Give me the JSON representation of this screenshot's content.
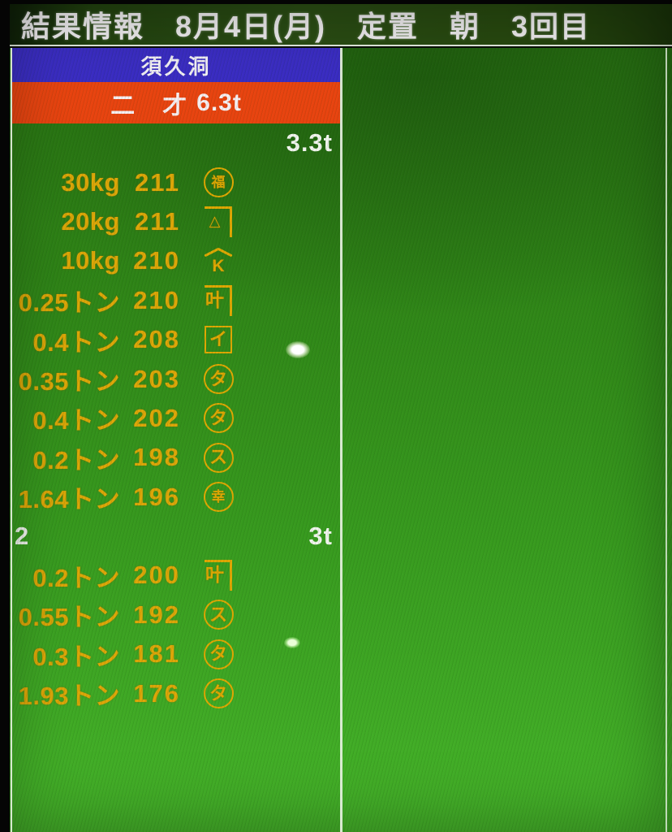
{
  "header": {
    "title": "結果情報　8月4日(月)　定置　朝　3回目"
  },
  "panel": {
    "location": "須久洞",
    "category_label": "二　才",
    "category_total": "6.3t",
    "groups": [
      {
        "number": "",
        "subtotal": "3.3t",
        "rows": [
          {
            "weight": "30kg",
            "price": "211",
            "mark": {
              "shape": "circle",
              "char": "福",
              "small": true,
              "name": "maru-fuku-mark"
            }
          },
          {
            "weight": "20kg",
            "price": "211",
            "mark": {
              "shape": "corner",
              "char": "△",
              "small": true,
              "name": "corner-triangle-mark"
            }
          },
          {
            "weight": "10kg",
            "price": "210",
            "mark": {
              "shape": "roof",
              "char": "K",
              "small": false,
              "name": "yane-k-mark"
            }
          },
          {
            "weight": "0.25トン",
            "price": "210",
            "mark": {
              "shape": "corner",
              "char": "叶",
              "small": false,
              "name": "corner-kano-mark"
            }
          },
          {
            "weight": "0.4トン",
            "price": "208",
            "mark": {
              "shape": "square",
              "char": "イ",
              "small": false,
              "name": "kaku-i-mark"
            }
          },
          {
            "weight": "0.35トン",
            "price": "203",
            "mark": {
              "shape": "circle",
              "char": "タ",
              "small": false,
              "name": "maru-ta-mark"
            }
          },
          {
            "weight": "0.4トン",
            "price": "202",
            "mark": {
              "shape": "circle",
              "char": "タ",
              "small": false,
              "name": "maru-ta-mark"
            }
          },
          {
            "weight": "0.2トン",
            "price": "198",
            "mark": {
              "shape": "circle",
              "char": "ス",
              "small": false,
              "name": "maru-su-mark"
            }
          },
          {
            "weight": "1.64トン",
            "price": "196",
            "mark": {
              "shape": "circle",
              "char": "幸",
              "small": true,
              "name": "maru-sachi-mark"
            }
          }
        ]
      },
      {
        "number": "2",
        "subtotal": "3t",
        "rows": [
          {
            "weight": "0.2トン",
            "price": "200",
            "mark": {
              "shape": "corner",
              "char": "叶",
              "small": false,
              "name": "corner-kano-mark"
            }
          },
          {
            "weight": "0.55トン",
            "price": "192",
            "mark": {
              "shape": "circle",
              "char": "ス",
              "small": false,
              "name": "maru-su-mark"
            }
          },
          {
            "weight": "0.3トン",
            "price": "181",
            "mark": {
              "shape": "circle",
              "char": "タ",
              "small": false,
              "name": "maru-ta-mark"
            }
          },
          {
            "weight": "1.93トン",
            "price": "176",
            "mark": {
              "shape": "circle",
              "char": "タ",
              "small": false,
              "name": "maru-ta-mark"
            }
          }
        ]
      }
    ]
  },
  "colors": {
    "location_bar": "#3a2cc2",
    "category_bar": "#e8430f",
    "board_green_top": "#2b7a13",
    "board_green_bottom": "#45b429",
    "row_text_yellow": "#dda607",
    "white_text": "#f1f5ee",
    "titlebar_green": "#2a4c14"
  }
}
